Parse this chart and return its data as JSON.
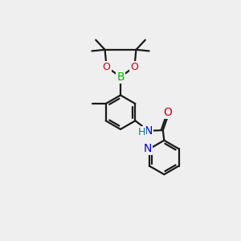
{
  "background_color": "#efefef",
  "bond_color": "#1a1a1a",
  "bond_width": 1.6,
  "atom_colors": {
    "B": "#00bb00",
    "O": "#cc0000",
    "N_amide": "#0000cc",
    "N_py": "#0000cc",
    "H": "#008888"
  },
  "figsize": [
    3.0,
    3.0
  ],
  "dpi": 100
}
